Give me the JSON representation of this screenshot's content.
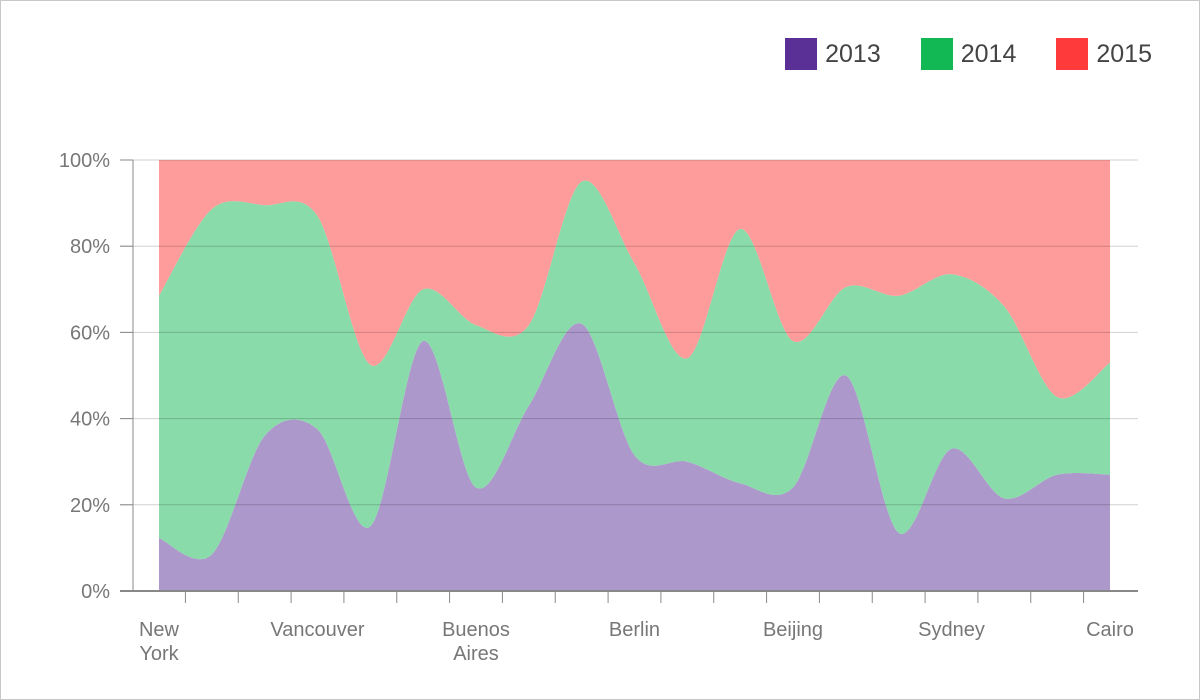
{
  "chart_data": {
    "type": "area",
    "stacked": "percent",
    "title": "",
    "xlabel": "",
    "ylabel": "",
    "ylim": [
      0,
      100
    ],
    "y_ticks": [
      "0%",
      "20%",
      "40%",
      "60%",
      "80%",
      "100%"
    ],
    "grid": true,
    "legend_placement": "top-right",
    "categories": [
      "New York",
      "",
      "",
      "Vancouver",
      "",
      "",
      "Buenos Aires",
      "",
      "",
      "Berlin",
      "",
      "",
      "Beijing",
      "",
      "",
      "Sydney",
      "",
      "",
      "Cairo"
    ],
    "series": [
      {
        "name": "2013",
        "color": "#5a2f96",
        "values": [
          12.3,
          8.5,
          36,
          37.5,
          15,
          58,
          24,
          43,
          62,
          31.5,
          30,
          25,
          24,
          50,
          13.5,
          33,
          21.5,
          27,
          27
        ]
      },
      {
        "name": "2014",
        "color": "#12b853",
        "values": [
          56.2,
          80.1,
          53.5,
          49.5,
          37.5,
          12,
          37.7,
          18.7,
          33,
          44.5,
          24,
          59,
          34,
          20.5,
          55,
          40.5,
          44.5,
          18,
          26
        ]
      },
      {
        "name": "2015",
        "color": "#fe3a3a",
        "values": [
          31.5,
          11.4,
          10.5,
          13,
          47.5,
          30,
          38.3,
          38.3,
          5,
          24,
          46,
          16,
          42,
          29.5,
          31.5,
          26.5,
          34,
          55,
          47
        ]
      }
    ]
  }
}
